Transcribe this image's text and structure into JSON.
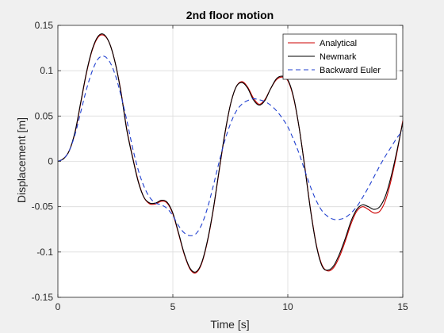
{
  "chart_data": {
    "type": "line",
    "title": "2nd floor motion",
    "xlabel": "Time [s]",
    "ylabel": "Displacement [m]",
    "xlim": [
      0,
      15
    ],
    "ylim": [
      -0.15,
      0.15
    ],
    "grid": true,
    "legend_position": "top-right",
    "x_ticks": [
      "0",
      "5",
      "10",
      "15"
    ],
    "x_tick_values": [
      0,
      5,
      10,
      15
    ],
    "y_ticks": [
      "-0.15",
      "-0.1",
      "-0.05",
      "0",
      "0.05",
      "0.1",
      "0.15"
    ],
    "y_tick_values": [
      -0.15,
      -0.1,
      -0.05,
      0,
      0.05,
      0.1,
      0.15
    ],
    "series": [
      {
        "name": "Analytical",
        "color": "#cc0000",
        "dash": "solid",
        "x": [
          0,
          0.25,
          0.5,
          0.75,
          1,
          1.25,
          1.5,
          1.75,
          2,
          2.25,
          2.5,
          2.75,
          3,
          3.25,
          3.5,
          3.75,
          4,
          4.25,
          4.5,
          4.75,
          5,
          5.25,
          5.5,
          5.75,
          6,
          6.25,
          6.5,
          6.75,
          7,
          7.25,
          7.5,
          7.75,
          8,
          8.25,
          8.5,
          8.75,
          9,
          9.25,
          9.5,
          9.75,
          10,
          10.25,
          10.5,
          10.75,
          11,
          11.25,
          11.5,
          11.75,
          12,
          12.25,
          12.5,
          12.75,
          13,
          13.25,
          13.5,
          13.75,
          14,
          14.25,
          14.5,
          14.75,
          15
        ],
        "y": [
          0,
          0.003,
          0.012,
          0.032,
          0.065,
          0.098,
          0.123,
          0.137,
          0.139,
          0.13,
          0.108,
          0.076,
          0.035,
          0.005,
          -0.022,
          -0.04,
          -0.047,
          -0.047,
          -0.044,
          -0.046,
          -0.058,
          -0.08,
          -0.103,
          -0.119,
          -0.123,
          -0.113,
          -0.089,
          -0.055,
          -0.013,
          0.028,
          0.062,
          0.082,
          0.088,
          0.082,
          0.07,
          0.063,
          0.068,
          0.08,
          0.09,
          0.093,
          0.089,
          0.07,
          0.036,
          -0.008,
          -0.055,
          -0.093,
          -0.115,
          -0.121,
          -0.117,
          -0.105,
          -0.088,
          -0.069,
          -0.055,
          -0.05,
          -0.053,
          -0.057,
          -0.055,
          -0.043,
          -0.02,
          0.01,
          0.045
        ]
      },
      {
        "name": "Newmark",
        "color": "#000000",
        "dash": "solid",
        "x": [
          0,
          0.25,
          0.5,
          0.75,
          1,
          1.25,
          1.5,
          1.75,
          2,
          2.25,
          2.5,
          2.75,
          3,
          3.25,
          3.5,
          3.75,
          4,
          4.25,
          4.5,
          4.75,
          5,
          5.25,
          5.5,
          5.75,
          6,
          6.25,
          6.5,
          6.75,
          7,
          7.25,
          7.5,
          7.75,
          8,
          8.25,
          8.5,
          8.75,
          9,
          9.25,
          9.5,
          9.75,
          10,
          10.25,
          10.5,
          10.75,
          11,
          11.25,
          11.5,
          11.75,
          12,
          12.25,
          12.5,
          12.75,
          13,
          13.25,
          13.5,
          13.75,
          14,
          14.25,
          14.5,
          14.75,
          15
        ],
        "y": [
          0,
          0.003,
          0.012,
          0.033,
          0.066,
          0.099,
          0.124,
          0.138,
          0.14,
          0.13,
          0.108,
          0.075,
          0.034,
          0.004,
          -0.023,
          -0.04,
          -0.046,
          -0.046,
          -0.043,
          -0.045,
          -0.057,
          -0.079,
          -0.102,
          -0.118,
          -0.122,
          -0.112,
          -0.088,
          -0.054,
          -0.012,
          0.029,
          0.062,
          0.082,
          0.087,
          0.081,
          0.068,
          0.062,
          0.067,
          0.08,
          0.091,
          0.094,
          0.09,
          0.071,
          0.036,
          -0.009,
          -0.056,
          -0.094,
          -0.116,
          -0.12,
          -0.115,
          -0.102,
          -0.085,
          -0.066,
          -0.053,
          -0.048,
          -0.05,
          -0.053,
          -0.05,
          -0.038,
          -0.016,
          0.012,
          0.043
        ]
      },
      {
        "name": "Backward Euler",
        "color": "#1f3fcf",
        "dash": "dashed",
        "x": [
          0,
          0.25,
          0.5,
          0.75,
          1,
          1.25,
          1.5,
          1.75,
          2,
          2.25,
          2.5,
          2.75,
          3,
          3.25,
          3.5,
          3.75,
          4,
          4.25,
          4.5,
          4.75,
          5,
          5.25,
          5.5,
          5.75,
          6,
          6.25,
          6.5,
          6.75,
          7,
          7.25,
          7.5,
          7.75,
          8,
          8.25,
          8.5,
          8.75,
          9,
          9.25,
          9.5,
          9.75,
          10,
          10.25,
          10.5,
          10.75,
          11,
          11.25,
          11.5,
          11.75,
          12,
          12.25,
          12.5,
          12.75,
          13,
          13.25,
          13.5,
          13.75,
          14,
          14.25,
          14.5,
          14.75,
          15
        ],
        "y": [
          0,
          0.003,
          0.012,
          0.03,
          0.055,
          0.08,
          0.1,
          0.113,
          0.116,
          0.11,
          0.095,
          0.072,
          0.045,
          0.015,
          -0.01,
          -0.028,
          -0.04,
          -0.046,
          -0.048,
          -0.052,
          -0.06,
          -0.071,
          -0.079,
          -0.082,
          -0.08,
          -0.07,
          -0.052,
          -0.028,
          -0.002,
          0.022,
          0.041,
          0.055,
          0.063,
          0.067,
          0.069,
          0.068,
          0.066,
          0.062,
          0.056,
          0.048,
          0.038,
          0.024,
          0.008,
          -0.011,
          -0.029,
          -0.044,
          -0.055,
          -0.061,
          -0.064,
          -0.064,
          -0.062,
          -0.057,
          -0.05,
          -0.04,
          -0.029,
          -0.017,
          -0.005,
          0.006,
          0.016,
          0.026,
          0.034
        ]
      }
    ]
  }
}
